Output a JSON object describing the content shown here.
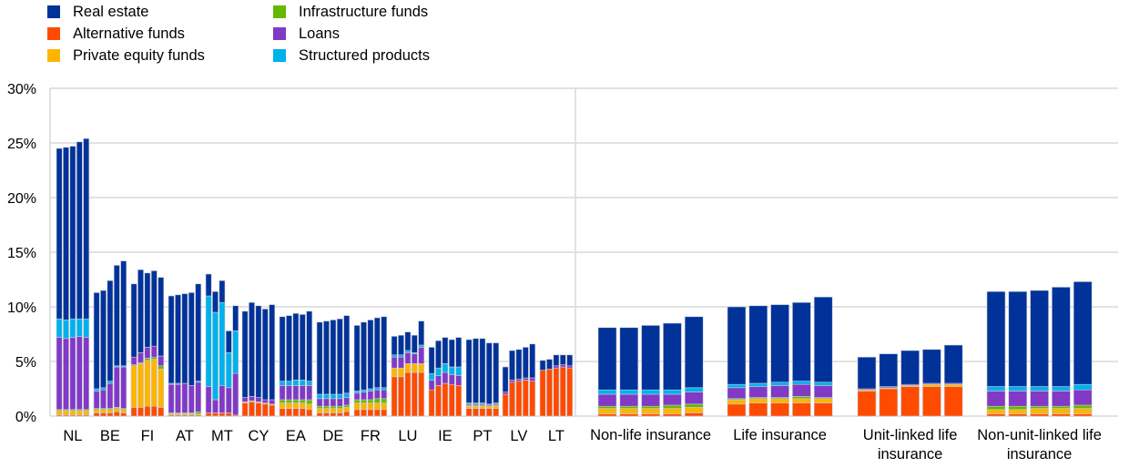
{
  "chart_data": {
    "type": "bar",
    "stacked": true,
    "title": "",
    "xlabel": "",
    "ylabel": "",
    "ylim": [
      0,
      30
    ],
    "yticks": [
      0,
      5,
      10,
      15,
      20,
      25,
      30
    ],
    "ytick_labels": [
      "0%",
      "5%",
      "10%",
      "15%",
      "20%",
      "25%",
      "30%"
    ],
    "grid": true,
    "legend_position": "top-left",
    "series_names": [
      "Alternative funds",
      "Private equity funds",
      "Infrastructure funds",
      "Loans",
      "Structured products",
      "Real estate"
    ],
    "legend": [
      {
        "name": "Real estate",
        "color": "#003299"
      },
      {
        "name": "Alternative funds",
        "color": "#FF4B00"
      },
      {
        "name": "Private equity funds",
        "color": "#FFB400"
      },
      {
        "name": "Infrastructure funds",
        "color": "#65B800"
      },
      {
        "name": "Loans",
        "color": "#8139C6"
      },
      {
        "name": "Structured products",
        "color": "#00B1EA"
      }
    ],
    "colors": {
      "Alternative funds": "#FF4B00",
      "Private equity funds": "#FFB400",
      "Infrastructure funds": "#65B800",
      "Loans": "#8139C6",
      "Structured products": "#00B1EA",
      "Real estate": "#003299"
    },
    "panels": [
      {
        "name": "countries",
        "groups": [
          {
            "label": "NL",
            "bars": [
              [
                0.1,
                0.4,
                0.1,
                6.6,
                1.7,
                15.6
              ],
              [
                0.1,
                0.4,
                0.1,
                6.5,
                1.7,
                15.8
              ],
              [
                0.1,
                0.4,
                0.1,
                6.6,
                1.7,
                15.8
              ],
              [
                0.1,
                0.4,
                0.1,
                6.7,
                1.6,
                16.2
              ],
              [
                0.1,
                0.4,
                0.1,
                6.6,
                1.7,
                16.5
              ]
            ]
          },
          {
            "label": "BE",
            "bars": [
              [
                0.3,
                0.3,
                0.1,
                1.6,
                0.2,
                8.8
              ],
              [
                0.3,
                0.3,
                0.1,
                1.7,
                0.2,
                8.9
              ],
              [
                0.3,
                0.3,
                0.1,
                2.3,
                0.2,
                9.2
              ],
              [
                0.4,
                0.3,
                0.1,
                3.7,
                0.1,
                9.2
              ],
              [
                0.3,
                0.3,
                0.1,
                3.8,
                0.1,
                9.6
              ]
            ]
          },
          {
            "label": "FI",
            "bars": [
              [
                0.8,
                3.8,
                0.1,
                0.7,
                0.0,
                6.7
              ],
              [
                0.8,
                4.0,
                0.1,
                0.9,
                0.0,
                7.6
              ],
              [
                0.9,
                4.2,
                0.2,
                1.0,
                0.0,
                6.8
              ],
              [
                0.9,
                4.3,
                0.2,
                1.0,
                0.0,
                6.9
              ],
              [
                0.8,
                3.5,
                0.3,
                0.9,
                0.0,
                7.2
              ]
            ]
          },
          {
            "label": "AT",
            "bars": [
              [
                0.1,
                0.1,
                0.1,
                2.6,
                0.1,
                8.0
              ],
              [
                0.1,
                0.1,
                0.1,
                2.6,
                0.1,
                8.1
              ],
              [
                0.1,
                0.1,
                0.1,
                2.7,
                0.0,
                8.2
              ],
              [
                0.1,
                0.1,
                0.1,
                2.5,
                0.0,
                8.5
              ],
              [
                0.1,
                0.1,
                0.2,
                2.7,
                0.1,
                8.9
              ]
            ]
          },
          {
            "label": "MT",
            "bars": [
              [
                0.3,
                0.0,
                0.0,
                2.4,
                8.3,
                2.0
              ],
              [
                0.3,
                0.0,
                0.0,
                1.2,
                8.0,
                1.9
              ],
              [
                0.3,
                0.0,
                0.0,
                2.5,
                7.6,
                2.0
              ],
              [
                0.3,
                0.0,
                0.0,
                2.3,
                3.2,
                2.0
              ],
              [
                0.1,
                0.0,
                0.0,
                3.8,
                3.9,
                2.3
              ]
            ]
          },
          {
            "label": "CY",
            "bars": [
              [
                1.2,
                0.1,
                0.0,
                0.4,
                0.0,
                7.9
              ],
              [
                1.3,
                0.1,
                0.0,
                0.4,
                0.0,
                8.6
              ],
              [
                1.2,
                0.1,
                0.0,
                0.4,
                0.0,
                8.4
              ],
              [
                1.1,
                0.1,
                0.0,
                0.3,
                0.0,
                8.3
              ],
              [
                1.0,
                0.1,
                0.0,
                0.4,
                0.0,
                8.7
              ]
            ]
          },
          {
            "label": "EA",
            "bars": [
              [
                0.7,
                0.5,
                0.3,
                1.3,
                0.4,
                5.9
              ],
              [
                0.7,
                0.5,
                0.3,
                1.3,
                0.4,
                6.0
              ],
              [
                0.7,
                0.5,
                0.3,
                1.3,
                0.5,
                6.1
              ],
              [
                0.7,
                0.5,
                0.3,
                1.3,
                0.5,
                6.0
              ],
              [
                0.6,
                0.5,
                0.4,
                1.3,
                0.4,
                6.4
              ]
            ]
          },
          {
            "label": "DE",
            "bars": [
              [
                0.3,
                0.4,
                0.2,
                0.7,
                0.4,
                6.6
              ],
              [
                0.3,
                0.4,
                0.2,
                0.7,
                0.4,
                6.7
              ],
              [
                0.3,
                0.4,
                0.2,
                0.7,
                0.4,
                6.8
              ],
              [
                0.3,
                0.4,
                0.2,
                0.7,
                0.4,
                6.9
              ],
              [
                0.4,
                0.4,
                0.2,
                0.7,
                0.4,
                7.1
              ]
            ]
          },
          {
            "label": "FR",
            "bars": [
              [
                0.6,
                0.6,
                0.3,
                0.6,
                0.2,
                6.0
              ],
              [
                0.6,
                0.6,
                0.3,
                0.7,
                0.2,
                6.2
              ],
              [
                0.6,
                0.6,
                0.3,
                0.8,
                0.2,
                6.3
              ],
              [
                0.6,
                0.6,
                0.4,
                0.8,
                0.2,
                6.4
              ],
              [
                0.6,
                0.6,
                0.4,
                0.8,
                0.2,
                6.5
              ]
            ]
          },
          {
            "label": "LU",
            "bars": [
              [
                3.6,
                0.8,
                0.0,
                1.0,
                0.2,
                1.7
              ],
              [
                3.6,
                0.8,
                0.0,
                1.0,
                0.2,
                1.8
              ],
              [
                4.0,
                0.8,
                0.0,
                1.0,
                0.2,
                1.7
              ],
              [
                4.0,
                0.8,
                0.0,
                0.9,
                0.1,
                1.6
              ],
              [
                4.0,
                0.8,
                0.0,
                1.5,
                0.2,
                2.2
              ]
            ]
          },
          {
            "label": "IE",
            "bars": [
              [
                2.4,
                0.0,
                0.0,
                0.9,
                0.6,
                2.4
              ],
              [
                2.8,
                0.0,
                0.0,
                0.9,
                0.7,
                2.5
              ],
              [
                3.0,
                0.0,
                0.0,
                1.0,
                0.8,
                2.4
              ],
              [
                2.9,
                0.0,
                0.0,
                0.9,
                0.7,
                2.5
              ],
              [
                2.8,
                0.0,
                0.0,
                0.9,
                0.8,
                2.7
              ]
            ]
          },
          {
            "label": "PT",
            "bars": [
              [
                0.7,
                0.2,
                0.1,
                0.1,
                0.1,
                5.8
              ],
              [
                0.7,
                0.2,
                0.1,
                0.1,
                0.1,
                5.9
              ],
              [
                0.7,
                0.2,
                0.1,
                0.1,
                0.1,
                5.9
              ],
              [
                0.7,
                0.2,
                0.0,
                0.1,
                0.1,
                5.6
              ],
              [
                0.7,
                0.3,
                0.0,
                0.1,
                0.1,
                5.5
              ]
            ]
          },
          {
            "label": "LV",
            "bars": [
              [
                2.0,
                0.0,
                0.0,
                0.2,
                0.0,
                2.3
              ],
              [
                3.1,
                0.0,
                0.0,
                0.2,
                0.0,
                2.7
              ],
              [
                3.2,
                0.0,
                0.0,
                0.2,
                0.0,
                2.7
              ],
              [
                3.3,
                0.0,
                0.0,
                0.2,
                0.0,
                2.8
              ],
              [
                3.2,
                0.0,
                0.0,
                0.3,
                0.0,
                3.1
              ]
            ]
          },
          {
            "label": "LT",
            "bars": [
              [
                4.2,
                0.0,
                0.0,
                0.0,
                0.0,
                0.9
              ],
              [
                4.3,
                0.0,
                0.0,
                0.0,
                0.0,
                0.9
              ],
              [
                4.4,
                0.0,
                0.0,
                0.2,
                0.0,
                1.0
              ],
              [
                4.5,
                0.0,
                0.0,
                0.2,
                0.0,
                0.9
              ],
              [
                4.4,
                0.0,
                0.0,
                0.2,
                0.0,
                1.0
              ]
            ]
          }
        ]
      },
      {
        "name": "insurance-types",
        "groups": [
          {
            "label": "Non-life insurance",
            "bars": [
              [
                0.2,
                0.5,
                0.2,
                1.1,
                0.4,
                5.7
              ],
              [
                0.2,
                0.5,
                0.2,
                1.1,
                0.4,
                5.7
              ],
              [
                0.2,
                0.5,
                0.2,
                1.1,
                0.4,
                5.9
              ],
              [
                0.2,
                0.5,
                0.3,
                1.0,
                0.4,
                6.1
              ],
              [
                0.3,
                0.5,
                0.3,
                1.1,
                0.4,
                6.5
              ]
            ]
          },
          {
            "label": "Life insurance",
            "bars": [
              [
                1.1,
                0.4,
                0.1,
                1.0,
                0.3,
                7.1
              ],
              [
                1.2,
                0.4,
                0.1,
                1.0,
                0.3,
                7.1
              ],
              [
                1.2,
                0.4,
                0.1,
                1.1,
                0.3,
                7.1
              ],
              [
                1.2,
                0.4,
                0.2,
                1.1,
                0.3,
                7.2
              ],
              [
                1.2,
                0.4,
                0.1,
                1.1,
                0.3,
                7.8
              ]
            ]
          },
          {
            "label": "Unit-linked life insurance",
            "bars": [
              [
                2.3,
                0.1,
                0.0,
                0.1,
                0.0,
                2.9
              ],
              [
                2.5,
                0.1,
                0.0,
                0.1,
                0.0,
                3.0
              ],
              [
                2.7,
                0.1,
                0.0,
                0.1,
                0.0,
                3.1
              ],
              [
                2.7,
                0.2,
                0.0,
                0.1,
                0.0,
                3.1
              ],
              [
                2.7,
                0.2,
                0.0,
                0.1,
                0.0,
                3.5
              ]
            ]
          },
          {
            "label": "Non-unit-linked life insurance",
            "bars": [
              [
                0.2,
                0.4,
                0.3,
                1.4,
                0.4,
                8.7
              ],
              [
                0.2,
                0.4,
                0.3,
                1.4,
                0.4,
                8.7
              ],
              [
                0.2,
                0.5,
                0.2,
                1.4,
                0.4,
                8.8
              ],
              [
                0.2,
                0.5,
                0.2,
                1.4,
                0.4,
                9.1
              ],
              [
                0.2,
                0.5,
                0.3,
                1.4,
                0.5,
                9.4
              ]
            ]
          }
        ]
      }
    ]
  }
}
